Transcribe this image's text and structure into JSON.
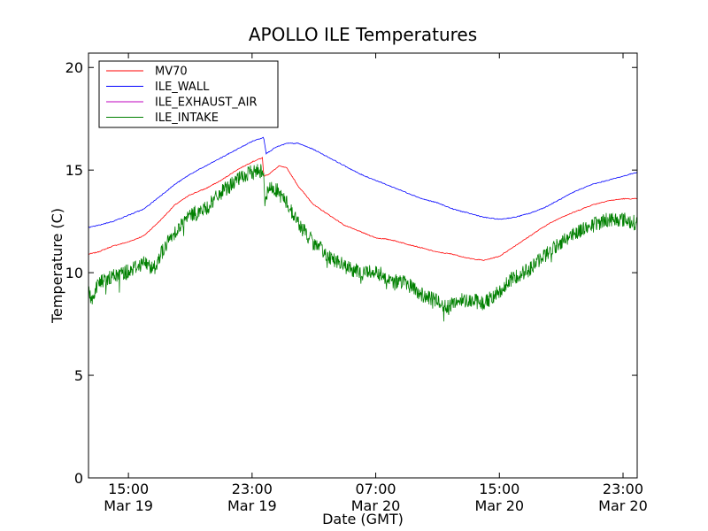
{
  "chart_data": {
    "type": "line",
    "title": "APOLLO ILE Temperatures",
    "xlabel": "Date (GMT)",
    "ylabel": "Temperature (C)",
    "ylim": [
      0,
      20.7
    ],
    "xlim": [
      "Mar 19 12:25",
      "Mar 20 23:55"
    ],
    "x_tick_labels": [
      {
        "at": "Mar 19 15:00",
        "time": "15:00",
        "date": "Mar 19"
      },
      {
        "at": "Mar 19 23:00",
        "time": "23:00",
        "date": "Mar 19"
      },
      {
        "at": "Mar 20 07:00",
        "time": "07:00",
        "date": "Mar 20"
      },
      {
        "at": "Mar 20 15:00",
        "time": "15:00",
        "date": "Mar 20"
      },
      {
        "at": "Mar 20 23:00",
        "time": "23:00",
        "date": "Mar 20"
      }
    ],
    "y_ticks": [
      0,
      5,
      10,
      15,
      20
    ],
    "grid": false,
    "legend": {
      "placement": "top-left"
    },
    "series": [
      {
        "name": "MV70",
        "color": "#ff0000",
        "x": [
          "Mar 19 12:25",
          "Mar 19 13:00",
          "Mar 19 14:00",
          "Mar 19 15:00",
          "Mar 19 16:00",
          "Mar 19 17:00",
          "Mar 19 18:00",
          "Mar 19 19:00",
          "Mar 19 20:00",
          "Mar 19 21:00",
          "Mar 19 22:00",
          "Mar 19 23:00",
          "Mar 19 23:40",
          "Mar 19 23:45",
          "Mar 20 00:05",
          "Mar 20 00:45",
          "Mar 20 01:15",
          "Mar 20 02:00",
          "Mar 20 03:00",
          "Mar 20 04:00",
          "Mar 20 05:00",
          "Mar 20 06:00",
          "Mar 20 07:00",
          "Mar 20 08:00",
          "Mar 20 09:00",
          "Mar 20 10:00",
          "Mar 20 11:00",
          "Mar 20 12:00",
          "Mar 20 13:00",
          "Mar 20 14:00",
          "Mar 20 15:00",
          "Mar 20 16:00",
          "Mar 20 17:00",
          "Mar 20 18:00",
          "Mar 20 19:00",
          "Mar 20 20:00",
          "Mar 20 21:00",
          "Mar 20 22:00",
          "Mar 20 23:00",
          "Mar 20 23:55"
        ],
        "y": [
          10.9,
          11.0,
          11.3,
          11.5,
          11.8,
          12.5,
          13.3,
          13.8,
          14.1,
          14.5,
          15.0,
          15.4,
          15.6,
          14.7,
          14.8,
          15.2,
          15.1,
          14.2,
          13.3,
          12.8,
          12.3,
          12.0,
          11.7,
          11.6,
          11.4,
          11.2,
          11.0,
          10.9,
          10.7,
          10.6,
          10.8,
          11.3,
          11.8,
          12.3,
          12.7,
          13.0,
          13.3,
          13.5,
          13.6,
          13.6
        ]
      },
      {
        "name": "ILE_WALL",
        "color": "#0000ff",
        "x": [
          "Mar 19 12:25",
          "Mar 19 13:00",
          "Mar 19 14:00",
          "Mar 19 15:00",
          "Mar 19 16:00",
          "Mar 19 17:00",
          "Mar 19 18:00",
          "Mar 19 19:00",
          "Mar 19 20:00",
          "Mar 19 21:00",
          "Mar 19 22:00",
          "Mar 19 23:00",
          "Mar 19 23:45",
          "Mar 19 23:55",
          "Mar 20 00:30",
          "Mar 20 01:15",
          "Mar 20 02:00",
          "Mar 20 03:00",
          "Mar 20 04:00",
          "Mar 20 05:00",
          "Mar 20 06:00",
          "Mar 20 07:00",
          "Mar 20 08:00",
          "Mar 20 09:00",
          "Mar 20 10:00",
          "Mar 20 11:00",
          "Mar 20 12:00",
          "Mar 20 13:00",
          "Mar 20 14:00",
          "Mar 20 15:00",
          "Mar 20 16:00",
          "Mar 20 17:00",
          "Mar 20 18:00",
          "Mar 20 19:00",
          "Mar 20 20:00",
          "Mar 20 21:00",
          "Mar 20 22:00",
          "Mar 20 23:00",
          "Mar 20 23:55"
        ],
        "y": [
          12.2,
          12.3,
          12.5,
          12.8,
          13.1,
          13.7,
          14.3,
          14.8,
          15.2,
          15.6,
          16.0,
          16.4,
          16.6,
          15.8,
          16.1,
          16.3,
          16.3,
          16.0,
          15.6,
          15.2,
          14.8,
          14.5,
          14.2,
          13.9,
          13.6,
          13.4,
          13.1,
          12.9,
          12.7,
          12.6,
          12.7,
          12.9,
          13.2,
          13.6,
          14.0,
          14.3,
          14.5,
          14.7,
          14.9
        ]
      },
      {
        "name": "ILE_EXHAUST_AIR",
        "color": "#bf00bf",
        "x": [],
        "y": []
      },
      {
        "name": "ILE_INTAKE",
        "color": "#008000",
        "x": [
          "Mar 19 12:25",
          "Mar 19 12:40",
          "Mar 19 13:00",
          "Mar 19 14:00",
          "Mar 19 15:00",
          "Mar 19 16:00",
          "Mar 19 16:40",
          "Mar 19 17:00",
          "Mar 19 18:00",
          "Mar 19 19:00",
          "Mar 19 20:00",
          "Mar 19 21:00",
          "Mar 19 22:00",
          "Mar 19 23:00",
          "Mar 19 23:35",
          "Mar 19 23:45",
          "Mar 19 23:50",
          "Mar 20 00:05",
          "Mar 20 00:30",
          "Mar 20 01:15",
          "Mar 20 02:00",
          "Mar 20 03:00",
          "Mar 20 04:00",
          "Mar 20 05:00",
          "Mar 20 06:00",
          "Mar 20 07:00",
          "Mar 20 08:00",
          "Mar 20 09:00",
          "Mar 20 10:00",
          "Mar 20 11:00",
          "Mar 20 11:50",
          "Mar 20 12:00",
          "Mar 20 13:00",
          "Mar 20 14:00",
          "Mar 20 15:00",
          "Mar 20 16:00",
          "Mar 20 17:00",
          "Mar 20 18:00",
          "Mar 20 19:00",
          "Mar 20 20:00",
          "Mar 20 21:00",
          "Mar 20 22:00",
          "Mar 20 23:00",
          "Mar 20 23:55"
        ],
        "y": [
          9.0,
          8.7,
          9.5,
          9.8,
          10.1,
          10.5,
          10.2,
          10.8,
          12.0,
          12.8,
          13.1,
          13.9,
          14.5,
          14.9,
          15.0,
          14.9,
          13.5,
          14.1,
          14.1,
          13.4,
          12.4,
          11.4,
          10.8,
          10.3,
          10.0,
          10.1,
          9.6,
          9.5,
          8.9,
          8.6,
          8.3,
          8.6,
          8.7,
          8.5,
          9.1,
          9.8,
          10.2,
          10.9,
          11.5,
          12.0,
          12.3,
          12.6,
          12.6,
          12.4
        ]
      }
    ]
  }
}
